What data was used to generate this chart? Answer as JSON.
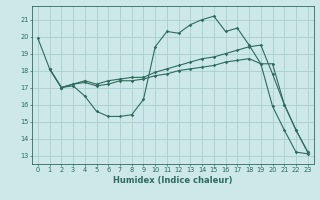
{
  "xlabel": "Humidex (Indice chaleur)",
  "bg_color": "#cce8e8",
  "grid_color": "#aacfcf",
  "line_color": "#2e6b5e",
  "xlim": [
    -0.5,
    23.5
  ],
  "ylim": [
    12.5,
    21.8
  ],
  "yticks": [
    13,
    14,
    15,
    16,
    17,
    18,
    19,
    20,
    21
  ],
  "xticks": [
    0,
    1,
    2,
    3,
    4,
    5,
    6,
    7,
    8,
    9,
    10,
    11,
    12,
    13,
    14,
    15,
    16,
    17,
    18,
    19,
    20,
    21,
    22,
    23
  ],
  "line1_x": [
    0,
    1,
    2,
    3,
    4,
    5,
    6,
    7,
    8,
    9,
    10,
    11,
    12,
    13,
    14,
    15,
    16,
    17,
    18,
    19,
    20,
    21,
    22,
    23
  ],
  "line1_y": [
    19.9,
    18.1,
    17.0,
    17.1,
    16.5,
    15.6,
    15.3,
    15.3,
    15.4,
    16.3,
    19.4,
    20.3,
    20.2,
    20.7,
    21.0,
    21.2,
    20.3,
    20.5,
    19.5,
    18.4,
    15.9,
    14.5,
    13.2,
    13.1
  ],
  "line2_x": [
    1,
    2,
    3,
    4,
    5,
    6,
    7,
    8,
    9,
    10,
    11,
    12,
    13,
    14,
    15,
    16,
    17,
    18,
    19,
    20,
    21,
    22,
    23
  ],
  "line2_y": [
    18.1,
    17.0,
    17.2,
    17.4,
    17.2,
    17.4,
    17.5,
    17.6,
    17.6,
    17.9,
    18.1,
    18.3,
    18.5,
    18.7,
    18.8,
    19.0,
    19.2,
    19.4,
    19.5,
    17.8,
    16.0,
    14.5,
    13.2
  ],
  "line3_x": [
    1,
    2,
    3,
    4,
    5,
    6,
    7,
    8,
    9,
    10,
    11,
    12,
    13,
    14,
    15,
    16,
    17,
    18,
    19,
    20,
    21,
    22,
    23
  ],
  "line3_y": [
    18.1,
    17.0,
    17.2,
    17.3,
    17.1,
    17.2,
    17.4,
    17.4,
    17.5,
    17.7,
    17.8,
    18.0,
    18.1,
    18.2,
    18.3,
    18.5,
    18.6,
    18.7,
    18.4,
    18.4,
    16.0,
    14.5,
    13.2
  ]
}
